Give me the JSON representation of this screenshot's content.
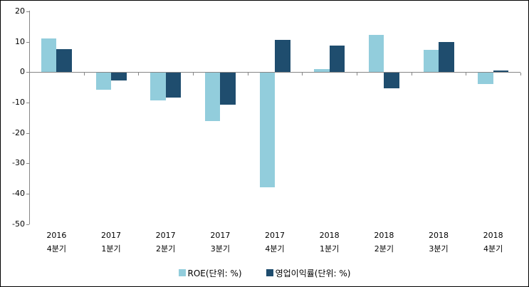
{
  "chart_data": {
    "type": "bar",
    "title": "",
    "xlabel": "",
    "ylabel": "",
    "categories": [
      {
        "year": "2016",
        "quarter": "4분기"
      },
      {
        "year": "2017",
        "quarter": "1분기"
      },
      {
        "year": "2017",
        "quarter": "2분기"
      },
      {
        "year": "2017",
        "quarter": "3분기"
      },
      {
        "year": "2017",
        "quarter": "4분기"
      },
      {
        "year": "2018",
        "quarter": "1분기"
      },
      {
        "year": "2018",
        "quarter": "2분기"
      },
      {
        "year": "2018",
        "quarter": "3분기"
      },
      {
        "year": "2018",
        "quarter": "4분기"
      }
    ],
    "series": [
      {
        "name": "ROE(단위: %)",
        "color": "#92CDDC",
        "values": [
          11.0,
          -5.8,
          -9.3,
          -16.2,
          -37.8,
          1.0,
          12.2,
          7.3,
          -4.0
        ]
      },
      {
        "name": "영업이익률(단위: %)",
        "color": "#1F4D6E",
        "values": [
          7.5,
          -2.8,
          -8.4,
          -10.8,
          10.7,
          8.7,
          -5.4,
          10.0,
          0.6
        ]
      }
    ],
    "ylim": [
      -50,
      20
    ],
    "yticks": [
      20,
      10,
      0,
      -10,
      -20,
      -30,
      -40,
      -50
    ],
    "grid": false,
    "legend_position": "bottom"
  },
  "colors": {
    "axis": "#868686",
    "text": "#000000",
    "background": "#FFFFFF",
    "frame_border": "#000000"
  }
}
